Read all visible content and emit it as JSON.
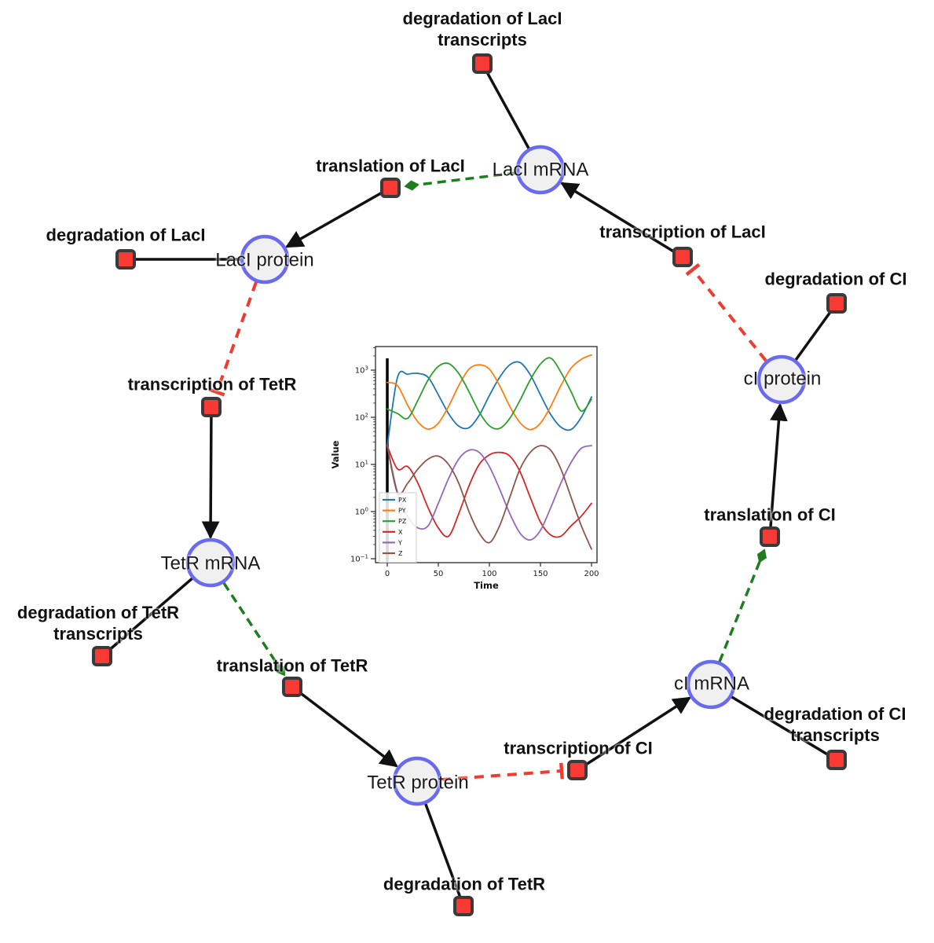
{
  "diagram": {
    "species": [
      {
        "id": "laci-mrna",
        "label": "LacI mRNA"
      },
      {
        "id": "laci-protein",
        "label": "LacI protein"
      },
      {
        "id": "ci-protein",
        "label": "cI protein"
      },
      {
        "id": "tetr-mrna",
        "label": "TetR mRNA"
      },
      {
        "id": "ci-mrna",
        "label": "cI mRNA"
      },
      {
        "id": "tetr-protein",
        "label": "TetR protein"
      }
    ],
    "reactions": [
      {
        "id": "degradation-of-laci-transcripts",
        "label": "degradation of LacI transcripts"
      },
      {
        "id": "translation-of-laci",
        "label": "translation of LacI"
      },
      {
        "id": "transcription-of-laci",
        "label": "transcription of LacI"
      },
      {
        "id": "degradation-of-laci",
        "label": "degradation of LacI"
      },
      {
        "id": "degradation-of-ci",
        "label": "degradation of CI"
      },
      {
        "id": "transcription-of-tetr",
        "label": "transcription of TetR"
      },
      {
        "id": "translation-of-ci",
        "label": "translation of CI"
      },
      {
        "id": "degradation-of-tetr-transcripts",
        "label": "degradation of TetR transcripts"
      },
      {
        "id": "translation-of-tetr",
        "label": "translation of TetR"
      },
      {
        "id": "degradation-of-ci-transcripts",
        "label": "degradation of CI transcripts"
      },
      {
        "id": "transcription-of-ci",
        "label": "transcription of CI"
      },
      {
        "id": "degradation-of-tetr",
        "label": "degradation of TetR"
      }
    ],
    "colors": {
      "species_fill": "#f0f0f0",
      "species_border": "#6a6af0",
      "reaction_fill": "#f93a34",
      "reaction_border": "#3a3a3a",
      "reactant_edge": "#111111",
      "catalysis_edge": "#1e7d1e",
      "inhibition_edge": "#f03b30"
    }
  },
  "chart_data": {
    "type": "line",
    "xlabel": "Time",
    "ylabel": "Value",
    "yscale": "log",
    "grid": false,
    "legend_position": "lower left",
    "x_ticks": [
      0,
      50,
      100,
      150,
      200
    ],
    "y_tick_exponents": [
      -1,
      0,
      1,
      2,
      3
    ],
    "xlim": [
      -10,
      210
    ],
    "ylim_exponents": [
      -1.08,
      3.5
    ],
    "vline_x": 0,
    "x": [
      0,
      10,
      20,
      30,
      40,
      50,
      60,
      70,
      80,
      90,
      100,
      110,
      120,
      130,
      140,
      150,
      160,
      170,
      180,
      190,
      200
    ],
    "series": [
      {
        "name": "PX",
        "color": "#1f77b4",
        "values": [
          25,
          700,
          820,
          850,
          700,
          300,
          120,
          65,
          60,
          110,
          290,
          700,
          1300,
          1450,
          800,
          300,
          115,
          62,
          55,
          100,
          270
        ]
      },
      {
        "name": "PY",
        "color": "#ff7f0e",
        "values": [
          550,
          470,
          180,
          80,
          56,
          75,
          170,
          470,
          1050,
          1300,
          1050,
          470,
          170,
          77,
          55,
          75,
          170,
          470,
          1100,
          1700,
          2100
        ]
      },
      {
        "name": "PZ",
        "color": "#2ca02c",
        "values": [
          150,
          120,
          95,
          230,
          620,
          1200,
          1380,
          850,
          350,
          130,
          66,
          58,
          95,
          230,
          620,
          1350,
          1800,
          900,
          350,
          135,
          240
        ]
      },
      {
        "name": "X",
        "color": "#d62728",
        "values": [
          25,
          8,
          9,
          4,
          1.2,
          0.45,
          0.3,
          0.9,
          3.5,
          10,
          16,
          18,
          15,
          7,
          2,
          0.6,
          0.32,
          0.3,
          0.5,
          0.8,
          1.5
        ]
      },
      {
        "name": "Y",
        "color": "#9467bd",
        "values": [
          25,
          2.5,
          0.8,
          0.45,
          0.5,
          1.5,
          5,
          13,
          20,
          18,
          9,
          3,
          0.9,
          0.35,
          0.25,
          0.4,
          1.2,
          4,
          11,
          22,
          25
        ]
      },
      {
        "name": "Z",
        "color": "#8c564b",
        "values": [
          25,
          2.5,
          4,
          8,
          13,
          15,
          10,
          4,
          1,
          0.35,
          0.22,
          0.5,
          2,
          8,
          18,
          25,
          20,
          8,
          2,
          0.5,
          0.16
        ]
      }
    ]
  }
}
